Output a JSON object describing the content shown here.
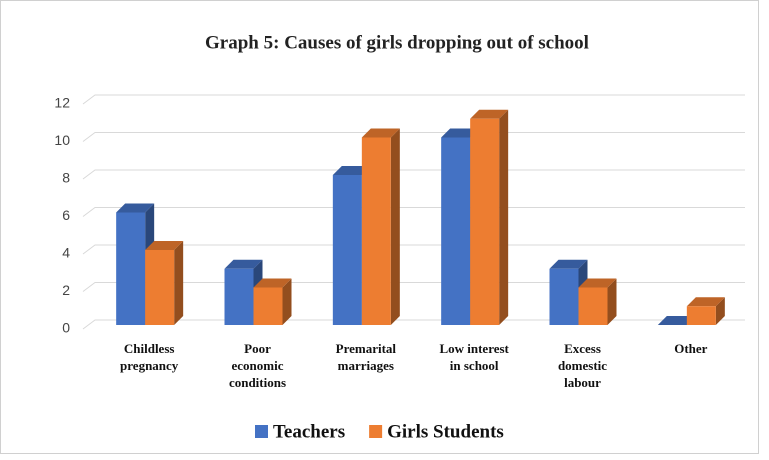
{
  "chart_data": {
    "type": "bar3d",
    "title": "Graph 5: Causes of girls  dropping out of school",
    "categories": [
      "Childless\npregnancy",
      "Poor\neconomic\nconditions",
      "Premarital\nmarriages",
      "Low interest\nin school",
      "Excess\ndomestic\nlabour",
      "Other"
    ],
    "series": [
      {
        "name": "Teachers",
        "color": "#4472c4",
        "values": [
          6,
          3,
          8,
          10,
          3,
          0
        ]
      },
      {
        "name": "Girls Students",
        "color": "#ed7d31",
        "values": [
          4,
          2,
          10,
          11,
          2,
          1
        ]
      }
    ],
    "ylim": [
      0,
      12
    ],
    "yticks": [
      0,
      2,
      4,
      6,
      8,
      10,
      12
    ],
    "grid": true,
    "legend": "bottom"
  }
}
